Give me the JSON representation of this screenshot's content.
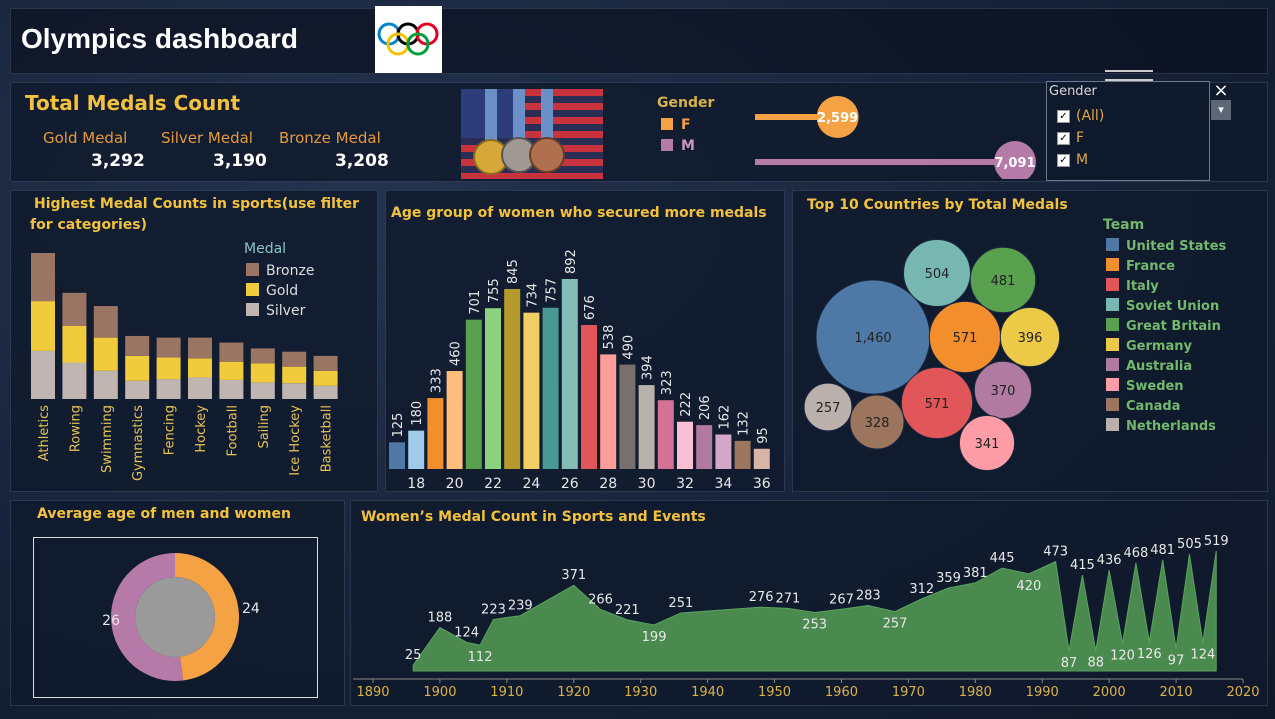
{
  "header": {
    "title": "Olympics dashboard"
  },
  "medals": {
    "title": "Total Medals Count",
    "items": [
      {
        "label": "Gold Medal",
        "value": "3,292"
      },
      {
        "label": "Silver Medal",
        "value": "3,190"
      },
      {
        "label": "Bronze Medal",
        "value": "3,208"
      }
    ]
  },
  "gender_bar": {
    "legend_title": "Gender",
    "items": [
      {
        "label": "F",
        "value": 2599,
        "display": "2,599",
        "color": "#f5a244"
      },
      {
        "label": "M",
        "value": 7091,
        "display": "7,091",
        "color": "#b67aa8"
      }
    ]
  },
  "gender_filter": {
    "title": "Gender",
    "options": [
      {
        "label": "(All)",
        "checked": true
      },
      {
        "label": "F",
        "checked": true
      },
      {
        "label": "M",
        "checked": true
      }
    ],
    "close_icon": "×",
    "menu_icon": "▾"
  },
  "sports": {
    "title_line1": "Highest Medal Counts in sports(use filter",
    "title_line2": "for categories)",
    "legend_title": "Medal",
    "colors": {
      "Bronze": "#9a7563",
      "Gold": "#f0cc3c",
      "Silver": "#c1b5b1"
    }
  },
  "age": {
    "title": "Age group of women who secured more medals"
  },
  "countries": {
    "title": "Top 10 Countries by Total Medals",
    "legend_title": "Team"
  },
  "avg_age": {
    "title": "Average age of men and women"
  },
  "women_events": {
    "title": "Women’s Medal Count in Sports and Events"
  },
  "chart_data": [
    {
      "type": "bar",
      "stacked": true,
      "categories": [
        "Athletics",
        "Rowing",
        "Swimming",
        "Gymnastics",
        "Fencing",
        "Hockey",
        "Football",
        "Sailing",
        "Ice Hockey",
        "Basketball"
      ],
      "series": [
        {
          "name": "Silver",
          "values": [
            290,
            220,
            170,
            110,
            120,
            130,
            115,
            100,
            95,
            80
          ]
        },
        {
          "name": "Gold",
          "values": [
            300,
            220,
            200,
            150,
            130,
            115,
            110,
            115,
            100,
            90
          ]
        },
        {
          "name": "Bronze",
          "values": [
            290,
            200,
            190,
            120,
            120,
            125,
            115,
            90,
            90,
            90
          ]
        }
      ],
      "legend": [
        "Bronze",
        "Gold",
        "Silver"
      ],
      "legend_position": "top-right"
    },
    {
      "type": "bar",
      "x": [
        17,
        18,
        19,
        20,
        21,
        22,
        23,
        24,
        25,
        26,
        27,
        28,
        29,
        30,
        31,
        32,
        33,
        34,
        35,
        36
      ],
      "values": [
        125,
        180,
        333,
        460,
        701,
        755,
        845,
        734,
        757,
        892,
        676,
        538,
        490,
        394,
        323,
        222,
        206,
        162,
        132,
        95
      ],
      "tick_labels": [
        "18",
        "20",
        "22",
        "24",
        "26",
        "28",
        "30",
        "32",
        "34",
        "36"
      ],
      "colors": [
        "#4e79a7",
        "#a0cbe8",
        "#f28e2b",
        "#ffbe7d",
        "#59a14f",
        "#8cd17d",
        "#b6992d",
        "#f1ce63",
        "#499894",
        "#86bcb6",
        "#e15759",
        "#ff9d9a",
        "#79706e",
        "#bab0ac",
        "#d37295",
        "#fabfd2",
        "#b07aa1",
        "#d4a6c8",
        "#9d7660",
        "#d7b5a6"
      ]
    },
    {
      "type": "bubble",
      "series": [
        {
          "name": "United States",
          "value": 1460,
          "color": "#4e79a7"
        },
        {
          "name": "France",
          "value": 571,
          "color": "#f28e2b"
        },
        {
          "name": "Italy",
          "value": 571,
          "color": "#e15759"
        },
        {
          "name": "Soviet Union",
          "value": 504,
          "color": "#76b7b2"
        },
        {
          "name": "Great Britain",
          "value": 481,
          "color": "#59a14f"
        },
        {
          "name": "Germany",
          "value": 396,
          "color": "#edc948"
        },
        {
          "name": "Australia",
          "value": 370,
          "color": "#b07aa1"
        },
        {
          "name": "Sweden",
          "value": 341,
          "color": "#ff9da7"
        },
        {
          "name": "Canada",
          "value": 328,
          "color": "#9c755f"
        },
        {
          "name": "Netherlands",
          "value": 257,
          "color": "#bab0ac"
        }
      ],
      "legend_position": "right"
    },
    {
      "type": "pie",
      "donut": true,
      "slices": [
        {
          "name": "F",
          "value": 24,
          "color": "#f5a244"
        },
        {
          "name": "M",
          "value": 26,
          "color": "#b67aa8"
        }
      ]
    },
    {
      "type": "area",
      "x": [
        1896,
        1900,
        1904,
        1906,
        1908,
        1912,
        1920,
        1924,
        1928,
        1932,
        1936,
        1948,
        1952,
        1956,
        1960,
        1964,
        1968,
        1972,
        1976,
        1980,
        1984,
        1988,
        1992,
        1994,
        1996,
        1998,
        2000,
        2002,
        2004,
        2006,
        2008,
        2010,
        2012,
        2014,
        2016
      ],
      "values": [
        25,
        188,
        124,
        112,
        223,
        239,
        371,
        266,
        221,
        199,
        251,
        276,
        271,
        253,
        267,
        283,
        257,
        312,
        359,
        381,
        445,
        420,
        473,
        87,
        415,
        88,
        436,
        120,
        468,
        126,
        481,
        97,
        505,
        124,
        519
      ],
      "labels": [
        "25",
        "188",
        "124",
        "112",
        "223",
        "239",
        "371",
        "266",
        "221",
        "199",
        "251",
        "276",
        "271",
        "253",
        "267",
        "283",
        "257",
        "312",
        "359",
        "381",
        "445",
        "420",
        "473",
        "87",
        "415",
        "88",
        "436",
        "120",
        "468",
        "126",
        "481",
        "97",
        "505",
        "124",
        "519"
      ],
      "tick_labels": [
        "1890",
        "1900",
        "1910",
        "1920",
        "1930",
        "1940",
        "1950",
        "1960",
        "1970",
        "1980",
        "1990",
        "2000",
        "2010",
        "2020"
      ],
      "xlim": [
        1890,
        2020
      ],
      "ylim": [
        0,
        550
      ],
      "color": "#4a8a4f"
    }
  ]
}
